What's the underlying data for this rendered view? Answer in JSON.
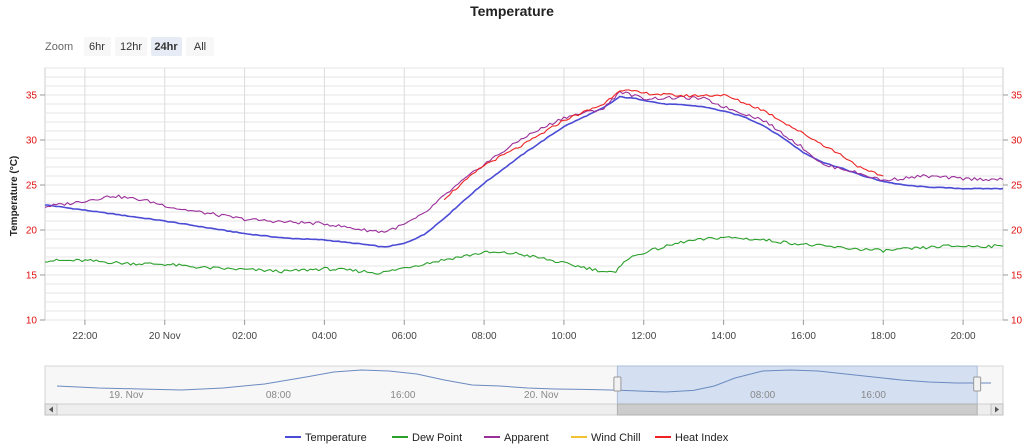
{
  "chart_data": {
    "type": "line",
    "title": "Temperature",
    "ylabel": "Temperature (°C)",
    "ylim": [
      10,
      38
    ],
    "yticks": [
      10,
      15,
      20,
      25,
      30,
      35
    ],
    "x_unit": "hour offset from 20 Nov 00:00",
    "xlim": [
      -3.0,
      21.0
    ],
    "xticks": [
      {
        "x": -2,
        "label": "22:00"
      },
      {
        "x": 0,
        "label": "20 Nov"
      },
      {
        "x": 2,
        "label": "02:00"
      },
      {
        "x": 4,
        "label": "04:00"
      },
      {
        "x": 6,
        "label": "06:00"
      },
      {
        "x": 8,
        "label": "08:00"
      },
      {
        "x": 10,
        "label": "10:00"
      },
      {
        "x": 12,
        "label": "12:00"
      },
      {
        "x": 14,
        "label": "14:00"
      },
      {
        "x": 16,
        "label": "16:00"
      },
      {
        "x": 18,
        "label": "18:00"
      },
      {
        "x": 20,
        "label": "20:00"
      }
    ],
    "series": [
      {
        "name": "Temperature",
        "color": "#4b4bd6",
        "points": [
          [
            -3,
            22.8
          ],
          [
            -2,
            22.2
          ],
          [
            -1,
            21.6
          ],
          [
            0,
            21.0
          ],
          [
            1,
            20.3
          ],
          [
            2,
            19.6
          ],
          [
            3,
            19.1
          ],
          [
            4,
            18.9
          ],
          [
            5,
            18.4
          ],
          [
            5.5,
            18.1
          ],
          [
            6,
            18.5
          ],
          [
            6.5,
            19.5
          ],
          [
            7,
            21.3
          ],
          [
            7.5,
            23.3
          ],
          [
            8,
            25.2
          ],
          [
            9,
            28.5
          ],
          [
            10,
            31.5
          ],
          [
            11,
            33.6
          ],
          [
            11.4,
            34.8
          ],
          [
            11.8,
            34.6
          ],
          [
            12.5,
            34.0
          ],
          [
            13,
            33.9
          ],
          [
            13.5,
            33.7
          ],
          [
            14,
            33.2
          ],
          [
            14.5,
            32.6
          ],
          [
            15,
            31.6
          ],
          [
            15.5,
            30.2
          ],
          [
            16,
            28.6
          ],
          [
            16.5,
            27.5
          ],
          [
            17,
            26.8
          ],
          [
            17.5,
            26.0
          ],
          [
            18,
            25.4
          ],
          [
            18.5,
            25.0
          ],
          [
            19,
            24.8
          ],
          [
            20,
            24.6
          ],
          [
            21,
            24.6
          ]
        ]
      },
      {
        "name": "Dew Point",
        "color": "#2ca02c",
        "points": [
          [
            -3,
            16.6
          ],
          [
            -2,
            16.6
          ],
          [
            -1,
            16.3
          ],
          [
            0,
            16.2
          ],
          [
            1,
            15.8
          ],
          [
            2,
            15.6
          ],
          [
            3,
            15.4
          ],
          [
            4,
            15.7
          ],
          [
            5,
            15.4
          ],
          [
            5.4,
            15.2
          ],
          [
            6,
            15.8
          ],
          [
            7,
            16.7
          ],
          [
            8,
            17.5
          ],
          [
            8.8,
            17.4
          ],
          [
            9.5,
            16.8
          ],
          [
            10,
            16.3
          ],
          [
            11,
            15.4
          ],
          [
            11.3,
            15.2
          ],
          [
            11.5,
            16.6
          ],
          [
            12,
            17.5
          ],
          [
            13,
            18.7
          ],
          [
            14,
            19.2
          ],
          [
            15,
            18.9
          ],
          [
            16,
            18.4
          ],
          [
            17,
            18.0
          ],
          [
            18,
            17.7
          ],
          [
            19,
            18.0
          ],
          [
            19.5,
            18.2
          ],
          [
            20,
            18.2
          ],
          [
            21,
            18.2
          ]
        ]
      },
      {
        "name": "Apparent",
        "color": "#9b309b",
        "points": [
          [
            -3,
            22.6
          ],
          [
            -2.3,
            23.0
          ],
          [
            -1.3,
            23.8
          ],
          [
            -0.5,
            23.3
          ],
          [
            0.3,
            22.4
          ],
          [
            1,
            21.9
          ],
          [
            2,
            21.2
          ],
          [
            3,
            20.9
          ],
          [
            4,
            20.7
          ],
          [
            5,
            20.0
          ],
          [
            5.5,
            19.8
          ],
          [
            6,
            20.6
          ],
          [
            6.5,
            21.8
          ],
          [
            7,
            23.8
          ],
          [
            7.5,
            25.6
          ],
          [
            8,
            27.3
          ],
          [
            9,
            30.3
          ],
          [
            10,
            32.5
          ],
          [
            11,
            33.5
          ],
          [
            11.4,
            35.4
          ],
          [
            12,
            34.6
          ],
          [
            13,
            34.7
          ],
          [
            13.5,
            34.6
          ],
          [
            14,
            33.7
          ],
          [
            15,
            32.2
          ],
          [
            16,
            29.1
          ],
          [
            16.5,
            27.2
          ],
          [
            17,
            26.8
          ],
          [
            18,
            25.5
          ],
          [
            19,
            26.0
          ],
          [
            20,
            25.7
          ],
          [
            21,
            25.6
          ]
        ]
      },
      {
        "name": "Wind Chill",
        "color": "#f2c230",
        "points": []
      },
      {
        "name": "Heat Index",
        "color": "#ee2222",
        "points": [
          [
            7,
            23.5
          ],
          [
            8,
            27.2
          ],
          [
            9,
            29.5
          ],
          [
            10,
            32.2
          ],
          [
            11,
            34.0
          ],
          [
            11.4,
            35.6
          ],
          [
            12,
            35.2
          ],
          [
            13,
            34.9
          ],
          [
            14,
            35.0
          ],
          [
            15,
            33.3
          ],
          [
            16,
            30.7
          ],
          [
            17,
            28.2
          ],
          [
            17.5,
            26.7
          ],
          [
            18,
            26.0
          ]
        ]
      }
    ],
    "legend": "bottom",
    "grid": true
  },
  "zoom": {
    "label": "Zoom",
    "buttons": [
      "6hr",
      "12hr",
      "24hr",
      "All"
    ],
    "selected": "24hr"
  },
  "navigator": {
    "labels": [
      {
        "x": -14.0,
        "text": "19. Nov"
      },
      {
        "x": -3.0,
        "text": "08:00"
      },
      {
        "x": 6.0,
        "text": "16:00"
      },
      {
        "x": 16.0,
        "text": "20. Nov"
      },
      {
        "x": 32.0,
        "text": "08:00"
      },
      {
        "x": 40.0,
        "text": "16:00"
      }
    ],
    "xlim": [
      -19.0,
      48.5
    ],
    "selection": [
      21.5,
      47.5
    ],
    "points": [
      [
        -19,
        22
      ],
      [
        -16,
        21
      ],
      [
        -13,
        20.5
      ],
      [
        -10,
        20
      ],
      [
        -7,
        21
      ],
      [
        -4,
        23
      ],
      [
        -1,
        26.5
      ],
      [
        1,
        29
      ],
      [
        3,
        30
      ],
      [
        5,
        29.5
      ],
      [
        7,
        28
      ],
      [
        9,
        25
      ],
      [
        11,
        22.5
      ],
      [
        13,
        22
      ],
      [
        15,
        21
      ],
      [
        17,
        20.5
      ],
      [
        19,
        20.3
      ],
      [
        21,
        20
      ],
      [
        23,
        19.5
      ],
      [
        25,
        19
      ],
      [
        27,
        19.8
      ],
      [
        28.5,
        22
      ],
      [
        30,
        26
      ],
      [
        32,
        29.5
      ],
      [
        34,
        30
      ],
      [
        36,
        29.5
      ],
      [
        38,
        28
      ],
      [
        40,
        26.5
      ],
      [
        42,
        25
      ],
      [
        44,
        24
      ],
      [
        46,
        23.5
      ],
      [
        48.5,
        23.5
      ]
    ],
    "ylim": [
      15,
      32
    ]
  }
}
